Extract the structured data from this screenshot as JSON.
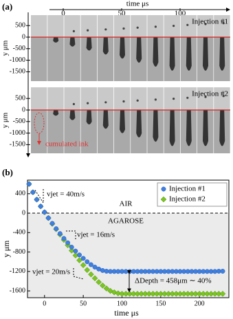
{
  "panel_a": {
    "label": "(a)",
    "x_axis_label": "time μs",
    "time_ticks": [
      0,
      50,
      100
    ],
    "y_axis_label": "y μm",
    "rows": [
      {
        "label": "Injection #1",
        "yticks": [
          500,
          0,
          -500,
          -1000,
          -1500
        ]
      },
      {
        "label": "Injection #2",
        "yticks": [
          500,
          0,
          -500,
          -1000,
          -1500
        ]
      }
    ],
    "annotation": "cumulated ink"
  },
  "chart_data": {
    "type": "scatter",
    "panel_label": "(b)",
    "x_label": "time μs",
    "y_label": "y μm",
    "xlim": [
      -22,
      238
    ],
    "ylim": [
      -1740,
      680
    ],
    "xticks": [
      0,
      50,
      100,
      150,
      200
    ],
    "yticks": [
      400,
      0,
      -400,
      -800,
      -1200,
      -1600
    ],
    "hline": 0,
    "legend": "upper right",
    "annotations": [
      "vjet = 40m/s",
      "AIR",
      "AGAROSE",
      "vjet = 16m/s",
      "vjet = 20m/s",
      "ΔDepth = 458μm ∼ 40%"
    ],
    "x": [
      -20,
      -15,
      -10,
      -5,
      0,
      5,
      10,
      15,
      20,
      25,
      30,
      35,
      40,
      45,
      50,
      55,
      60,
      65,
      70,
      75,
      80,
      85,
      90,
      95,
      100,
      105,
      110,
      115,
      120,
      125,
      130,
      135,
      140,
      145,
      150,
      155,
      160,
      165,
      170,
      175,
      180,
      185,
      190,
      195,
      200,
      205,
      210,
      215,
      220,
      225,
      230
    ],
    "series": [
      {
        "name": "Injection #1",
        "color": "#3f7fe0",
        "values": [
          600,
          430,
          280,
          140,
          20,
          -100,
          -210,
          -320,
          -420,
          -520,
          -610,
          -700,
          -780,
          -860,
          -930,
          -1000,
          -1060,
          -1110,
          -1150,
          -1180,
          -1195,
          -1200,
          -1200,
          -1200,
          -1200,
          -1200,
          -1200,
          -1200,
          -1200,
          -1200,
          -1200,
          -1200,
          -1200,
          -1200,
          -1200,
          -1200,
          -1200,
          -1200,
          -1200,
          -1200,
          -1200,
          -1200,
          -1200,
          -1200,
          -1200,
          -1200,
          -1200,
          -1200,
          -1200,
          -1195,
          -1195
        ]
      },
      {
        "name": "Injection #2",
        "color": "#7bc520",
        "values": [
          600,
          430,
          280,
          140,
          20,
          -100,
          -220,
          -330,
          -440,
          -550,
          -660,
          -770,
          -870,
          -970,
          -1070,
          -1170,
          -1260,
          -1340,
          -1420,
          -1490,
          -1550,
          -1600,
          -1630,
          -1650,
          -1660,
          -1660,
          -1660,
          -1660,
          -1660,
          -1660,
          -1660,
          -1660,
          -1660,
          -1660,
          -1660,
          -1660,
          -1660,
          -1660,
          -1660,
          -1660,
          -1660,
          -1660,
          -1660,
          -1660,
          -1660,
          -1660,
          -1660,
          -1660,
          -1660,
          -1660,
          -1660
        ]
      }
    ]
  }
}
